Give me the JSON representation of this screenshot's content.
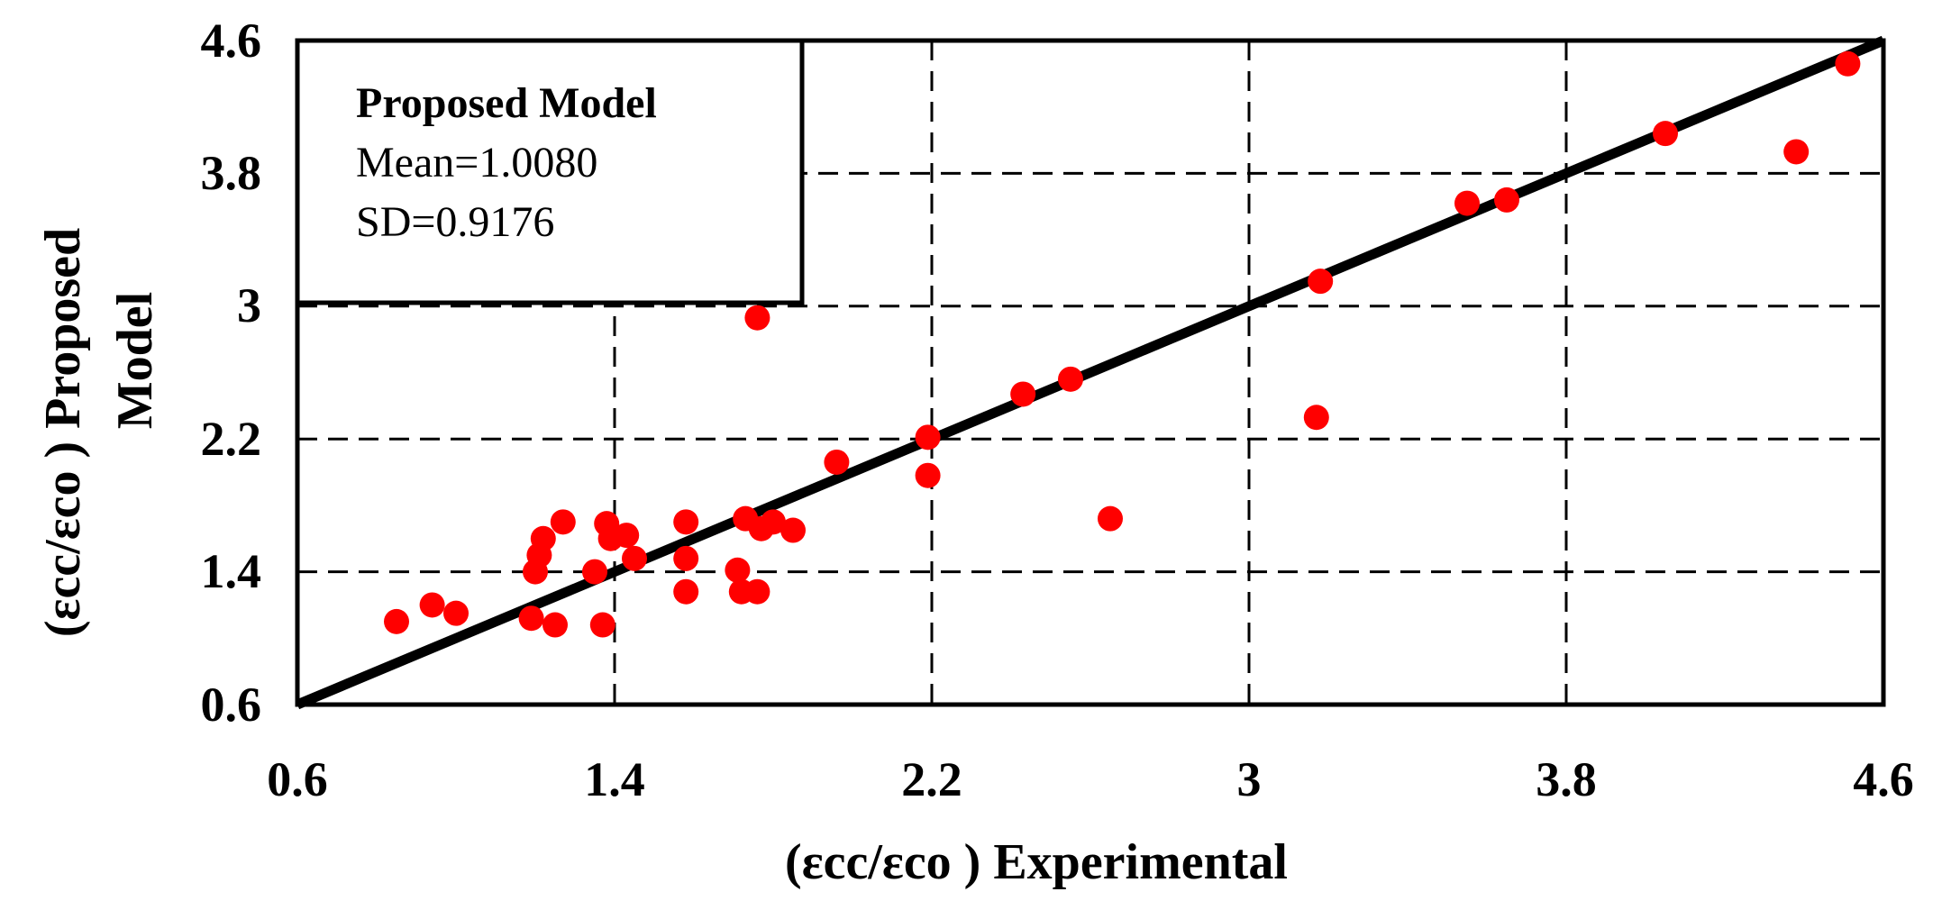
{
  "chart_data": {
    "type": "scatter",
    "xlabel": "(εcc/εco ) Experimental",
    "ylabel_lines": [
      "(εcc/εco ) Proposed",
      "Model"
    ],
    "xlim": [
      0.6,
      4.6
    ],
    "ylim": [
      0.6,
      4.6
    ],
    "xticks": [
      0.6,
      1.4,
      2.2,
      3,
      3.8,
      4.6
    ],
    "yticks": [
      0.6,
      1.4,
      2.2,
      3,
      3.8,
      4.6
    ],
    "xtick_labels": [
      "0.6",
      "1.4",
      "2.2",
      "3",
      "3.8",
      "4.6"
    ],
    "ytick_labels": [
      "0.6",
      "1.4",
      "2.2",
      "3",
      "3.8",
      "4.6"
    ],
    "grid": true,
    "grid_style": "dashed",
    "point_color": "#ff0000",
    "line_color": "#000000",
    "reference_line": {
      "label": "y = x",
      "from": [
        0.6,
        0.6
      ],
      "to": [
        4.6,
        4.6
      ]
    },
    "legend": {
      "title": "Proposed Model",
      "lines": [
        "Mean=1.0080",
        "SD=0.9176"
      ],
      "placement": "top-left"
    },
    "series": [
      {
        "name": "Proposed Model",
        "points": [
          [
            0.85,
            1.1
          ],
          [
            0.94,
            1.2
          ],
          [
            1.0,
            1.15
          ],
          [
            1.19,
            1.12
          ],
          [
            1.2,
            1.4
          ],
          [
            1.21,
            1.5
          ],
          [
            1.22,
            1.6
          ],
          [
            1.25,
            1.08
          ],
          [
            1.27,
            1.7
          ],
          [
            1.35,
            1.4
          ],
          [
            1.37,
            1.08
          ],
          [
            1.38,
            1.69
          ],
          [
            1.39,
            1.6
          ],
          [
            1.43,
            1.62
          ],
          [
            1.45,
            1.48
          ],
          [
            1.58,
            1.7
          ],
          [
            1.58,
            1.48
          ],
          [
            1.58,
            1.28
          ],
          [
            1.71,
            1.41
          ],
          [
            1.72,
            1.28
          ],
          [
            1.73,
            1.72
          ],
          [
            1.76,
            1.28
          ],
          [
            1.77,
            1.66
          ],
          [
            1.8,
            1.7
          ],
          [
            1.85,
            1.65
          ],
          [
            1.76,
            2.93
          ],
          [
            1.96,
            2.06
          ],
          [
            2.19,
            2.21
          ],
          [
            2.19,
            1.98
          ],
          [
            2.43,
            2.47
          ],
          [
            2.55,
            2.56
          ],
          [
            2.65,
            1.72
          ],
          [
            3.17,
            2.33
          ],
          [
            3.18,
            3.15
          ],
          [
            3.55,
            3.62
          ],
          [
            3.65,
            3.64
          ],
          [
            4.05,
            4.04
          ],
          [
            4.38,
            3.93
          ],
          [
            4.51,
            4.46
          ]
        ]
      }
    ]
  }
}
